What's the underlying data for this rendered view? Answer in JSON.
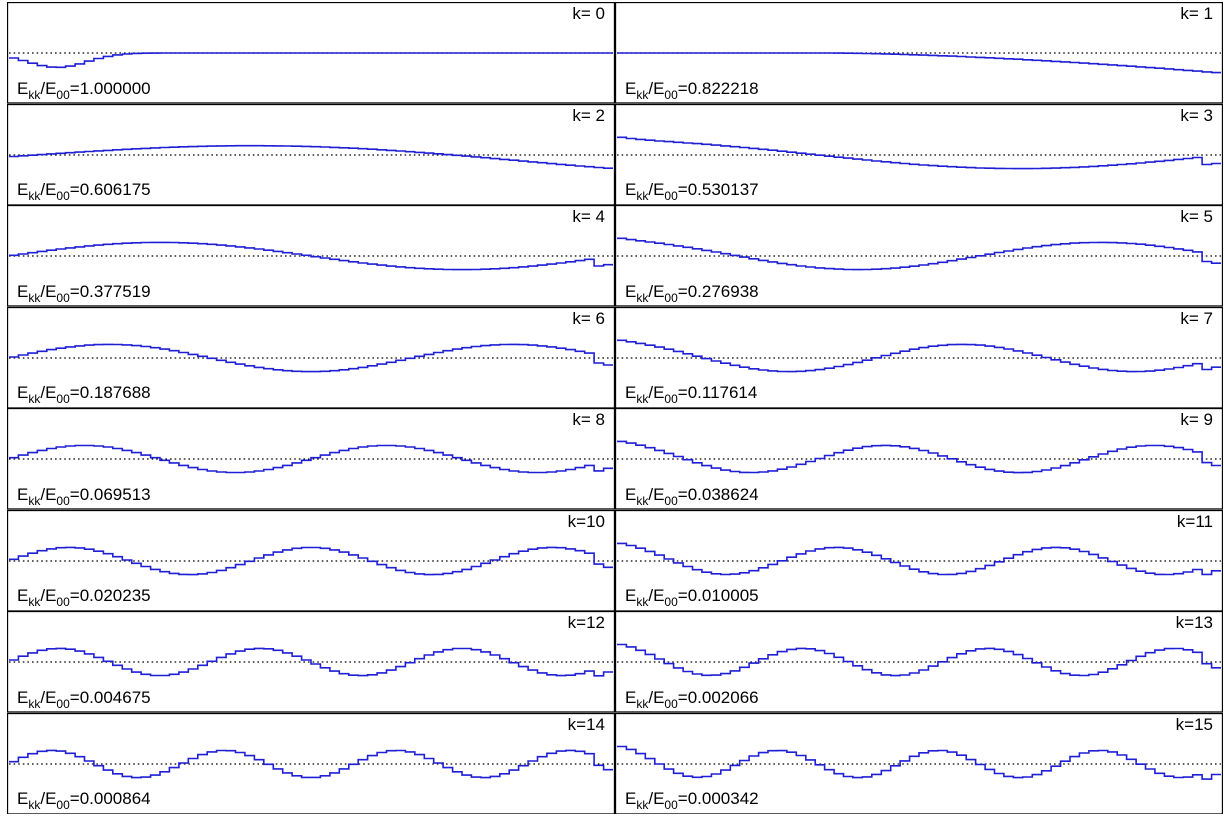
{
  "chart_data": {
    "type": "line",
    "layout": {
      "rows": 8,
      "cols": 2,
      "order": "row-major"
    },
    "style": {
      "line_color": "#1f1fd6",
      "reference_line": "dotted",
      "reference_color": "#000000",
      "step_line": true
    },
    "energy_label": {
      "base": "E",
      "num_sub": "kk",
      "mid": "/E",
      "den_sub": "00"
    },
    "panels": [
      {
        "k_label": "k= 0",
        "k": 0,
        "energy": "1.000000"
      },
      {
        "k_label": "k= 1",
        "k": 1,
        "energy": "0.822218"
      },
      {
        "k_label": "k= 2",
        "k": 2,
        "energy": "0.606175"
      },
      {
        "k_label": "k= 3",
        "k": 3,
        "energy": "0.530137"
      },
      {
        "k_label": "k= 4",
        "k": 4,
        "energy": "0.377519"
      },
      {
        "k_label": "k= 5",
        "k": 5,
        "energy": "0.276938"
      },
      {
        "k_label": "k= 6",
        "k": 6,
        "energy": "0.187688"
      },
      {
        "k_label": "k= 7",
        "k": 7,
        "energy": "0.117614"
      },
      {
        "k_label": "k= 8",
        "k": 8,
        "energy": "0.069513"
      },
      {
        "k_label": "k= 9",
        "k": 9,
        "energy": "0.038624"
      },
      {
        "k_label": "k=10",
        "k": 10,
        "energy": "0.020235"
      },
      {
        "k_label": "k=11",
        "k": 11,
        "energy": "0.010005"
      },
      {
        "k_label": "k=12",
        "k": 12,
        "energy": "0.004675"
      },
      {
        "k_label": "k=13",
        "k": 13,
        "energy": "0.002066"
      },
      {
        "k_label": "k=14",
        "k": 14,
        "energy": "0.000864"
      },
      {
        "k_label": "k=15",
        "k": 15,
        "energy": "0.000342"
      }
    ]
  }
}
